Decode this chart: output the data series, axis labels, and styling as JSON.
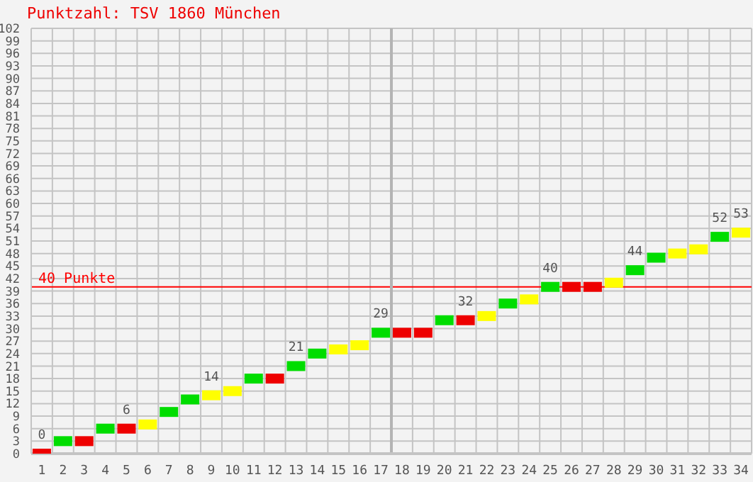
{
  "chart_data": {
    "type": "scatter",
    "title": "Punktzahl: TSV 1860 München",
    "marker": "square",
    "grid": true,
    "x": [
      1,
      2,
      3,
      4,
      5,
      6,
      7,
      8,
      9,
      10,
      11,
      12,
      13,
      14,
      15,
      16,
      17,
      18,
      19,
      20,
      21,
      22,
      23,
      24,
      25,
      26,
      27,
      28,
      29,
      30,
      31,
      32,
      33,
      34
    ],
    "values": [
      0,
      3,
      3,
      6,
      6,
      7,
      10,
      13,
      14,
      15,
      18,
      18,
      21,
      24,
      25,
      26,
      29,
      29,
      29,
      32,
      32,
      33,
      36,
      37,
      40,
      40,
      40,
      41,
      44,
      47,
      48,
      49,
      52,
      53
    ],
    "colors": [
      "#ee0000",
      "#00dd00",
      "#ee0000",
      "#00dd00",
      "#ee0000",
      "#ffff00",
      "#00dd00",
      "#00dd00",
      "#ffff00",
      "#ffff00",
      "#00dd00",
      "#ee0000",
      "#00dd00",
      "#00dd00",
      "#ffff00",
      "#ffff00",
      "#00dd00",
      "#ee0000",
      "#ee0000",
      "#00dd00",
      "#ee0000",
      "#ffff00",
      "#00dd00",
      "#ffff00",
      "#00dd00",
      "#ee0000",
      "#ee0000",
      "#ffff00",
      "#00dd00",
      "#00dd00",
      "#ffff00",
      "#ffff00",
      "#00dd00",
      "#ffff00"
    ],
    "value_labels": [
      "0",
      null,
      null,
      null,
      "6",
      null,
      null,
      null,
      "14",
      null,
      null,
      null,
      "21",
      null,
      null,
      null,
      "29",
      null,
      null,
      null,
      "32",
      null,
      null,
      null,
      "40",
      null,
      null,
      null,
      "44",
      null,
      null,
      null,
      "52",
      "53"
    ],
    "xlim": [
      0.5,
      34.5
    ],
    "xticks": [
      1,
      2,
      3,
      4,
      5,
      6,
      7,
      8,
      9,
      10,
      11,
      12,
      13,
      14,
      15,
      16,
      17,
      18,
      19,
      20,
      21,
      22,
      23,
      24,
      25,
      26,
      27,
      28,
      29,
      30,
      31,
      32,
      33,
      34
    ],
    "ylim": [
      0,
      102
    ],
    "yticks": [
      0,
      3,
      6,
      9,
      12,
      15,
      18,
      21,
      24,
      27,
      30,
      33,
      36,
      39,
      42,
      45,
      48,
      51,
      54,
      57,
      60,
      63,
      66,
      69,
      72,
      75,
      78,
      81,
      84,
      87,
      90,
      93,
      96,
      99,
      102
    ],
    "ref_lines": [
      {
        "axis": "y",
        "value": 40,
        "label": "40 Punkte",
        "color": "#ff0000"
      },
      {
        "axis": "x",
        "value": 17.5,
        "color": "#b4b4b4"
      }
    ]
  }
}
